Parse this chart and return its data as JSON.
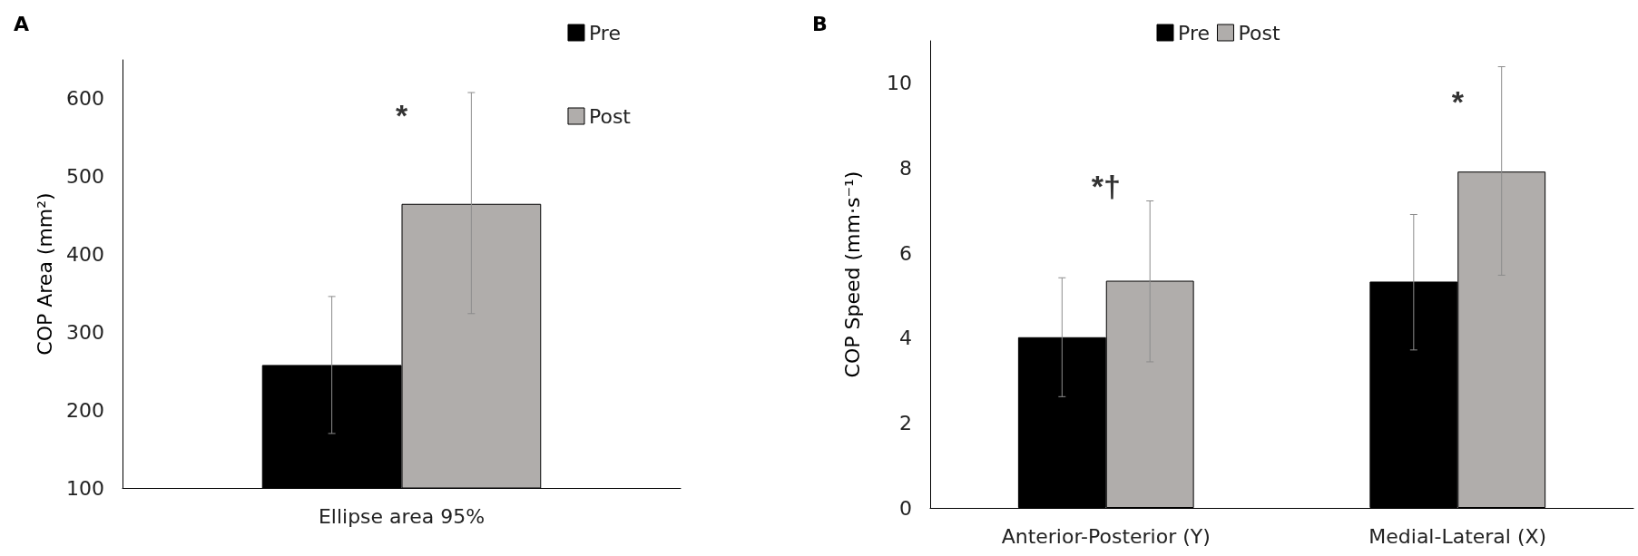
{
  "chart_data": [
    {
      "type": "bar",
      "title": "A",
      "ylabel": "COP Area (mm²)",
      "categories": [
        "Ellipse area 95%"
      ],
      "series": [
        {
          "name": "Pre",
          "color": "#000000",
          "values": [
            258
          ],
          "errors": [
            [
              170,
              346
            ]
          ]
        },
        {
          "name": "Post",
          "color": "#b0adab",
          "values": [
            465
          ],
          "errors": [
            [
              324,
              608
            ]
          ]
        }
      ],
      "ylim": [
        100,
        650
      ],
      "yticks": [
        100,
        200,
        300,
        400,
        500,
        600
      ],
      "grid": false,
      "legend": "top right",
      "annotations": [
        "*"
      ]
    },
    {
      "type": "bar",
      "title": "B",
      "ylabel": "COP Speed (mm·s⁻¹)",
      "categories": [
        "Anterior-Posterior (Y)",
        "Medial-Lateral (X)"
      ],
      "series": [
        {
          "name": "Pre",
          "color": "#000000",
          "values": [
            4.02,
            5.33
          ],
          "errors": [
            [
              2.62,
              5.42
            ],
            [
              3.72,
              6.91
            ]
          ]
        },
        {
          "name": "Post",
          "color": "#b0adab",
          "values": [
            5.35,
            7.92
          ],
          "errors": [
            [
              3.44,
              7.23
            ],
            [
              5.48,
              10.39
            ]
          ]
        }
      ],
      "ylim": [
        0,
        11
      ],
      "yticks": [
        0,
        2,
        4,
        6,
        8,
        10
      ],
      "grid": false,
      "legend": "top",
      "annotations": [
        "*†",
        "*"
      ]
    }
  ]
}
